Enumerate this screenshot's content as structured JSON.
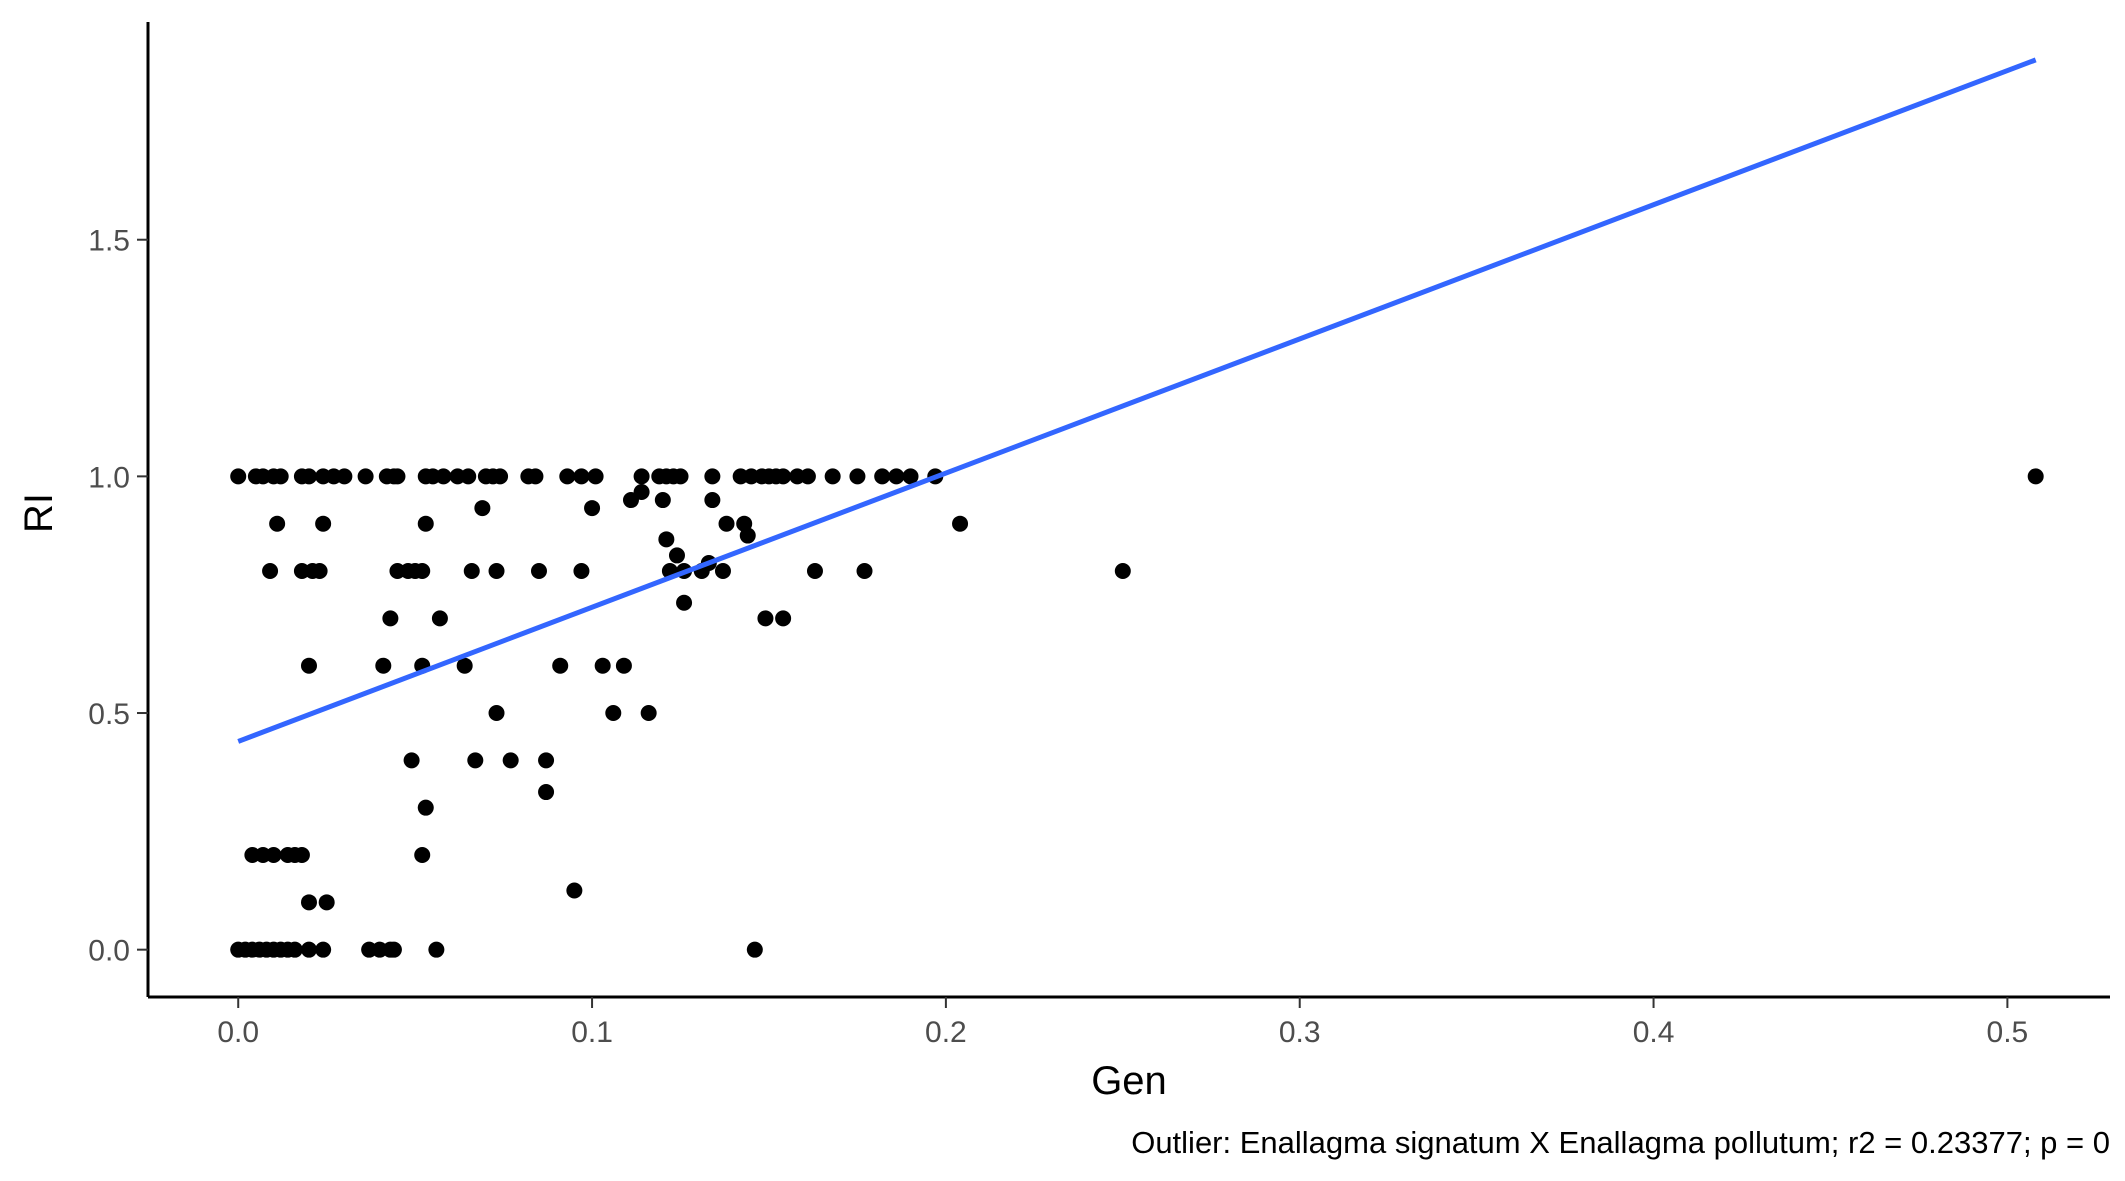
{
  "chart_data": {
    "type": "scatter",
    "title": "",
    "xlabel": "Gen",
    "ylabel": "RI",
    "caption": "Outlier: Enallagma signatum X Enallagma pollutum; r2 = 0.23377; p = 0",
    "xlim": [
      -0.0255,
      0.529
    ],
    "ylim": [
      -0.1,
      1.96
    ],
    "x_ticks": [
      0.0,
      0.1,
      0.2,
      0.3,
      0.4,
      0.5
    ],
    "x_tick_labels": [
      "0.0",
      "0.1",
      "0.2",
      "0.3",
      "0.4",
      "0.5"
    ],
    "y_ticks": [
      0.0,
      0.5,
      1.0,
      1.5
    ],
    "y_tick_labels": [
      "0.0",
      "0.5",
      "1.0",
      "1.5"
    ],
    "grid": false,
    "colors": {
      "points": "#000000",
      "line": "#3366ff",
      "axis": "#000000",
      "tick_text": "#4d4d4d"
    },
    "fit_line": {
      "x": [
        0.0,
        0.508
      ],
      "y": [
        0.44,
        1.88
      ]
    },
    "points": [
      [
        0.0,
        1.0
      ],
      [
        0.005,
        1.0
      ],
      [
        0.007,
        1.0
      ],
      [
        0.01,
        1.0
      ],
      [
        0.012,
        1.0
      ],
      [
        0.018,
        1.0
      ],
      [
        0.02,
        1.0
      ],
      [
        0.024,
        1.0
      ],
      [
        0.027,
        1.0
      ],
      [
        0.03,
        1.0
      ],
      [
        0.036,
        1.0
      ],
      [
        0.042,
        1.0
      ],
      [
        0.044,
        1.0
      ],
      [
        0.045,
        1.0
      ],
      [
        0.053,
        1.0
      ],
      [
        0.055,
        1.0
      ],
      [
        0.058,
        1.0
      ],
      [
        0.062,
        1.0
      ],
      [
        0.065,
        1.0
      ],
      [
        0.07,
        1.0
      ],
      [
        0.072,
        1.0
      ],
      [
        0.074,
        1.0
      ],
      [
        0.082,
        1.0
      ],
      [
        0.084,
        1.0
      ],
      [
        0.093,
        1.0
      ],
      [
        0.097,
        1.0
      ],
      [
        0.101,
        1.0
      ],
      [
        0.114,
        1.0
      ],
      [
        0.119,
        1.0
      ],
      [
        0.121,
        1.0
      ],
      [
        0.123,
        1.0
      ],
      [
        0.125,
        1.0
      ],
      [
        0.134,
        1.0
      ],
      [
        0.142,
        1.0
      ],
      [
        0.145,
        1.0
      ],
      [
        0.148,
        1.0
      ],
      [
        0.15,
        1.0
      ],
      [
        0.152,
        1.0
      ],
      [
        0.154,
        1.0
      ],
      [
        0.158,
        1.0
      ],
      [
        0.161,
        1.0
      ],
      [
        0.168,
        1.0
      ],
      [
        0.175,
        1.0
      ],
      [
        0.182,
        1.0
      ],
      [
        0.186,
        1.0
      ],
      [
        0.19,
        1.0
      ],
      [
        0.197,
        1.0
      ],
      [
        0.508,
        1.0
      ],
      [
        0.011,
        0.9
      ],
      [
        0.024,
        0.9
      ],
      [
        0.053,
        0.9
      ],
      [
        0.069,
        0.933
      ],
      [
        0.1,
        0.933
      ],
      [
        0.111,
        0.95
      ],
      [
        0.114,
        0.967
      ],
      [
        0.12,
        0.95
      ],
      [
        0.121,
        0.867
      ],
      [
        0.134,
        0.95
      ],
      [
        0.138,
        0.9
      ],
      [
        0.143,
        0.9
      ],
      [
        0.144,
        0.875
      ],
      [
        0.204,
        0.9
      ],
      [
        0.009,
        0.8
      ],
      [
        0.018,
        0.8
      ],
      [
        0.021,
        0.8
      ],
      [
        0.023,
        0.8
      ],
      [
        0.045,
        0.8
      ],
      [
        0.048,
        0.8
      ],
      [
        0.05,
        0.8
      ],
      [
        0.052,
        0.8
      ],
      [
        0.066,
        0.8
      ],
      [
        0.073,
        0.8
      ],
      [
        0.085,
        0.8
      ],
      [
        0.097,
        0.8
      ],
      [
        0.122,
        0.8
      ],
      [
        0.124,
        0.833
      ],
      [
        0.126,
        0.8
      ],
      [
        0.131,
        0.8
      ],
      [
        0.133,
        0.817
      ],
      [
        0.137,
        0.8
      ],
      [
        0.163,
        0.8
      ],
      [
        0.177,
        0.8
      ],
      [
        0.25,
        0.8
      ],
      [
        0.126,
        0.733
      ],
      [
        0.043,
        0.7
      ],
      [
        0.057,
        0.7
      ],
      [
        0.149,
        0.7
      ],
      [
        0.154,
        0.7
      ],
      [
        0.02,
        0.6
      ],
      [
        0.041,
        0.6
      ],
      [
        0.052,
        0.6
      ],
      [
        0.064,
        0.6
      ],
      [
        0.091,
        0.6
      ],
      [
        0.103,
        0.6
      ],
      [
        0.109,
        0.6
      ],
      [
        0.073,
        0.5
      ],
      [
        0.106,
        0.5
      ],
      [
        0.116,
        0.5
      ],
      [
        0.049,
        0.4
      ],
      [
        0.067,
        0.4
      ],
      [
        0.077,
        0.4
      ],
      [
        0.087,
        0.4
      ],
      [
        0.087,
        0.333
      ],
      [
        0.053,
        0.3
      ],
      [
        0.052,
        0.2
      ],
      [
        0.004,
        0.2
      ],
      [
        0.007,
        0.2
      ],
      [
        0.01,
        0.2
      ],
      [
        0.014,
        0.2
      ],
      [
        0.016,
        0.2
      ],
      [
        0.018,
        0.2
      ],
      [
        0.02,
        0.1
      ],
      [
        0.025,
        0.1
      ],
      [
        0.095,
        0.125
      ],
      [
        0.0,
        0.0
      ],
      [
        0.002,
        0.0
      ],
      [
        0.004,
        0.0
      ],
      [
        0.006,
        0.0
      ],
      [
        0.008,
        0.0
      ],
      [
        0.01,
        0.0
      ],
      [
        0.012,
        0.0
      ],
      [
        0.014,
        0.0
      ],
      [
        0.016,
        0.0
      ],
      [
        0.02,
        0.0
      ],
      [
        0.024,
        0.0
      ],
      [
        0.037,
        0.0
      ],
      [
        0.04,
        0.0
      ],
      [
        0.043,
        0.0
      ],
      [
        0.044,
        0.0
      ],
      [
        0.056,
        0.0
      ],
      [
        0.146,
        0.0
      ]
    ]
  }
}
